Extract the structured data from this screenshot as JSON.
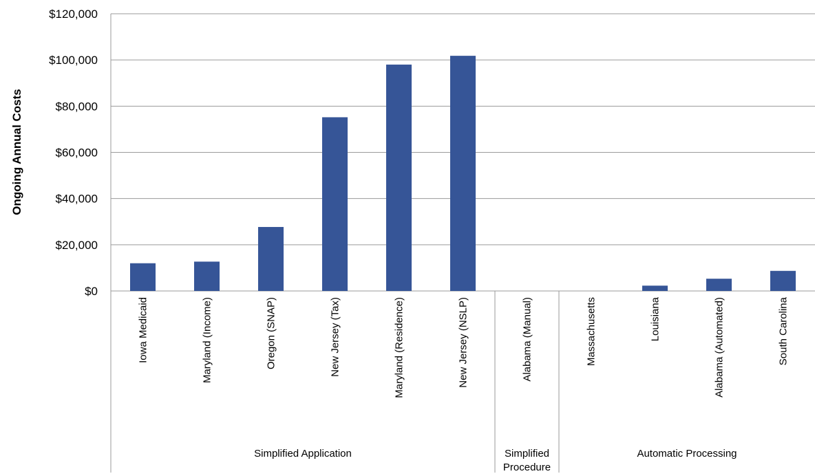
{
  "chart_data": {
    "type": "bar",
    "ylabel": "Ongoing Annual Costs",
    "ylim": [
      0,
      120000
    ],
    "yticks": [
      0,
      20000,
      40000,
      60000,
      80000,
      100000,
      120000
    ],
    "ytick_labels": [
      "$0",
      "$20,000",
      "$40,000",
      "$60,000",
      "$80,000",
      "$100,000",
      "$120,000"
    ],
    "grid": true,
    "bar_color": "#365597",
    "categories": [
      "Iowa Medicaid",
      "Maryland (Income)",
      "Oregon (SNAP)",
      "New Jersey (Tax)",
      "Maryland (Residence)",
      "New Jersey (NSLP)",
      "Alabama (Manual)",
      "Massachusetts",
      "Louisiana",
      "Alabama (Automated)",
      "South Carolina"
    ],
    "values": [
      12000,
      12700,
      27700,
      75200,
      98000,
      101800,
      0,
      0,
      2300,
      5300,
      8700
    ],
    "groups": [
      {
        "lines": [
          "Simplified Application"
        ],
        "count": 6
      },
      {
        "lines": [
          "Simplified",
          "Procedure"
        ],
        "count": 1
      },
      {
        "lines": [
          "Automatic Processing"
        ],
        "count": 4
      }
    ]
  }
}
